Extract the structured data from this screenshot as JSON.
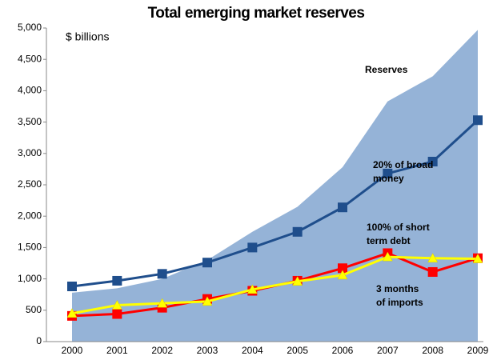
{
  "chart_data": {
    "type": "line",
    "title": "Total emerging market reserves",
    "y_label": "$ billions",
    "categories": [
      "2000",
      "2001",
      "2002",
      "2003",
      "2004",
      "2005",
      "2006",
      "2007",
      "2008",
      "2009"
    ],
    "ylim": [
      0,
      5000
    ],
    "yticks": [
      0,
      {
        "value": 500,
        "label": "500"
      },
      {
        "value": 1000,
        "label": "1,000"
      },
      {
        "value": 1500,
        "label": "1,500"
      },
      {
        "value": 2000,
        "label": "2,000"
      },
      {
        "value": 2500,
        "label": "2,500"
      },
      {
        "value": 3000,
        "label": "3,000"
      },
      {
        "value": 3500,
        "label": "3,500"
      },
      {
        "value": 4000,
        "label": "4,000"
      },
      {
        "value": 4500,
        "label": "4,500"
      },
      {
        "value": 5000,
        "label": "5,000"
      }
    ],
    "grid": false,
    "series": [
      {
        "name": "Reserves",
        "type": "area",
        "color": "#95b3d7",
        "values": [
          780,
          850,
          1000,
          1300,
          1750,
          2150,
          2780,
          3830,
          4230,
          4970
        ]
      },
      {
        "name": "20% of broad money",
        "type": "line",
        "marker": "square",
        "color": "#1f4e8c",
        "values": [
          880,
          970,
          1080,
          1260,
          1500,
          1750,
          2140,
          2680,
          2870,
          3530
        ]
      },
      {
        "name": "3 months of imports",
        "type": "line",
        "marker": "square",
        "color": "#ff0000",
        "values": [
          410,
          440,
          540,
          680,
          810,
          970,
          1170,
          1410,
          1110,
          1330
        ]
      },
      {
        "name": "100% of short term debt",
        "type": "line",
        "marker": "triangle",
        "color": "#ffff00",
        "values": [
          450,
          580,
          610,
          640,
          830,
          960,
          1060,
          1350,
          1330,
          1320
        ]
      }
    ]
  }
}
